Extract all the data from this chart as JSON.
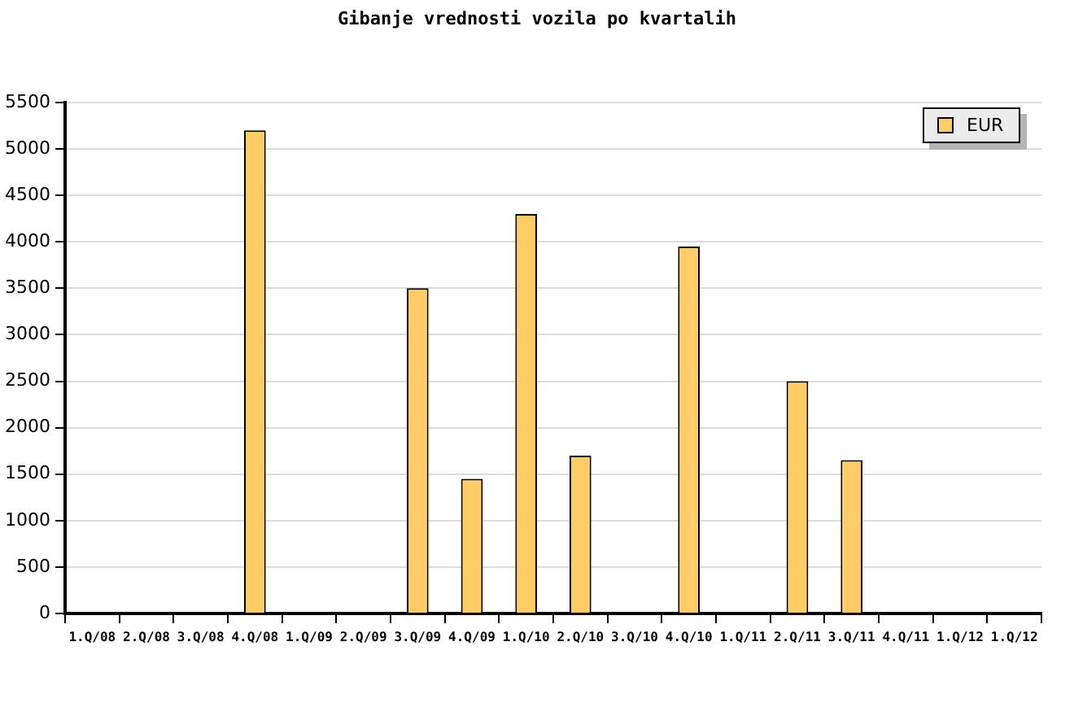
{
  "chart_data": {
    "type": "bar",
    "title": "Gibanje vrednosti vozila po kvartalih",
    "categories": [
      "1.Q/08",
      "2.Q/08",
      "3.Q/08",
      "4.Q/08",
      "1.Q/09",
      "2.Q/09",
      "3.Q/09",
      "4.Q/09",
      "1.Q/10",
      "2.Q/10",
      "3.Q/10",
      "4.Q/10",
      "1.Q/11",
      "2.Q/11",
      "3.Q/11",
      "4.Q/11",
      "1.Q/12",
      "1.Q/12"
    ],
    "series": [
      {
        "name": "EUR",
        "color": "#ffcc66",
        "values": [
          null,
          null,
          null,
          5200,
          null,
          null,
          3500,
          1450,
          4300,
          1700,
          null,
          3950,
          null,
          2500,
          1650,
          null,
          null,
          null
        ]
      }
    ],
    "ylim": [
      0,
      5500
    ],
    "yticks": [
      0,
      500,
      1000,
      1500,
      2000,
      2500,
      3000,
      3500,
      4000,
      4500,
      5000,
      5500
    ],
    "grid": "y",
    "legend": "top right"
  }
}
